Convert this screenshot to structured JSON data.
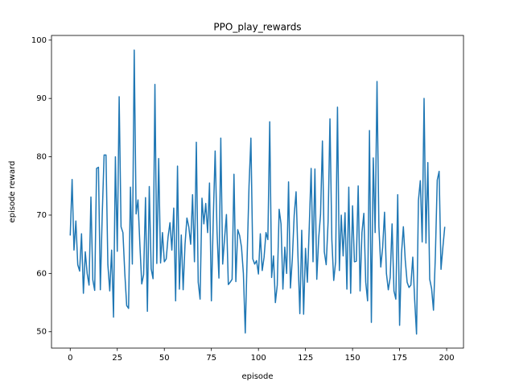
{
  "chart_data": {
    "type": "line",
    "title": "PPO_play_rewards",
    "x_label": "episode",
    "y_label": "episode reward",
    "x": [
      0,
      1,
      2,
      3,
      4,
      5,
      6,
      7,
      8,
      9,
      10,
      11,
      12,
      13,
      14,
      15,
      16,
      17,
      18,
      19,
      20,
      21,
      22,
      23,
      24,
      25,
      26,
      27,
      28,
      29,
      30,
      31,
      32,
      33,
      34,
      35,
      36,
      37,
      38,
      39,
      40,
      41,
      42,
      43,
      44,
      45,
      46,
      47,
      48,
      49,
      50,
      51,
      52,
      53,
      54,
      55,
      56,
      57,
      58,
      59,
      60,
      61,
      62,
      63,
      64,
      65,
      66,
      67,
      68,
      69,
      70,
      71,
      72,
      73,
      74,
      75,
      76,
      77,
      78,
      79,
      80,
      81,
      82,
      83,
      84,
      85,
      86,
      87,
      88,
      89,
      90,
      91,
      92,
      93,
      94,
      95,
      96,
      97,
      98,
      99,
      100,
      101,
      102,
      103,
      104,
      105,
      106,
      107,
      108,
      109,
      110,
      111,
      112,
      113,
      114,
      115,
      116,
      117,
      118,
      119,
      120,
      121,
      122,
      123,
      124,
      125,
      126,
      127,
      128,
      129,
      130,
      131,
      132,
      133,
      134,
      135,
      136,
      137,
      138,
      139,
      140,
      141,
      142,
      143,
      144,
      145,
      146,
      147,
      148,
      149,
      150,
      151,
      152,
      153,
      154,
      155,
      156,
      157,
      158,
      159,
      160,
      161,
      162,
      163,
      164,
      165,
      166,
      167,
      168,
      169,
      170,
      171,
      172,
      173,
      174,
      175,
      176,
      177,
      178,
      179,
      180,
      181,
      182,
      183,
      184,
      185,
      186,
      187,
      188,
      189,
      190,
      191,
      192,
      193,
      194,
      195,
      196,
      197,
      198,
      199
    ],
    "series": [
      {
        "color": "#1f77b4",
        "values": [
          66.5,
          76.1,
          64,
          69,
          61.5,
          60.4,
          66.8,
          56.6,
          63.7,
          60,
          58,
          73.1,
          58.9,
          57.1,
          78,
          78.2,
          57.2,
          70,
          80.3,
          80.3,
          61.5,
          57,
          64,
          52.5,
          80,
          63.8,
          90.3,
          68,
          67,
          60,
          54.5,
          54,
          74.8,
          61.6,
          98.3,
          70.2,
          72.6,
          65,
          58.2,
          59.8,
          73,
          53.5,
          74.9,
          60.8,
          59.1,
          92.4,
          61.7,
          79.7,
          61.8,
          67,
          62,
          62.5,
          66.3,
          68.7,
          64,
          71.2,
          55.3,
          78.4,
          57.3,
          66.6,
          57.2,
          65,
          69.5,
          68,
          65,
          73.5,
          62,
          82.5,
          58.5,
          55.6,
          72.9,
          68.5,
          72,
          67,
          75.5,
          55.3,
          69.3,
          81,
          67.1,
          59.2,
          83.2,
          61.6,
          66,
          70.1,
          58.1,
          58.5,
          59,
          77,
          58.6,
          67.5,
          66.5,
          64.5,
          60,
          49.8,
          62.8,
          75,
          83.2,
          62.5,
          61.6,
          62.2,
          59.9,
          66.8,
          60.5,
          62.8,
          67,
          65.8,
          86,
          59.3,
          63,
          55,
          58,
          71,
          68.5,
          57.3,
          64.5,
          60,
          75.7,
          57.5,
          62.5,
          70,
          74,
          63,
          53.1,
          67.4,
          53,
          64.3,
          58.5,
          68,
          78,
          62,
          77.9,
          59,
          66,
          70.1,
          82.7,
          63.7,
          61.5,
          68.8,
          86.5,
          65.8,
          58.8,
          62,
          88.5,
          60.5,
          70,
          63,
          70.4,
          57.3,
          74.8,
          56.6,
          71.6,
          62,
          62.1,
          75,
          57,
          67,
          70.3,
          58.5,
          55.3,
          84.5,
          51.6,
          79.8,
          67,
          92.9,
          68,
          61.1,
          64.5,
          70.5,
          60,
          57.2,
          59.3,
          68.5,
          57,
          55.6,
          73.5,
          51.1,
          63.4,
          68,
          62.3,
          58.5,
          57.6,
          58,
          62.8,
          55.5,
          49.6,
          72.5,
          75.9,
          65.4,
          90,
          65.2,
          79,
          59,
          57.4,
          53.7,
          63,
          76,
          77.5,
          60.7,
          64.5,
          68
        ]
      }
    ],
    "xlim": [
      -9.95,
      208.95
    ],
    "ylim": [
      47.2,
      100.8
    ],
    "xticks": [
      0,
      25,
      50,
      75,
      100,
      125,
      150,
      175,
      200
    ],
    "yticks": [
      50,
      60,
      70,
      80,
      90,
      100
    ]
  }
}
